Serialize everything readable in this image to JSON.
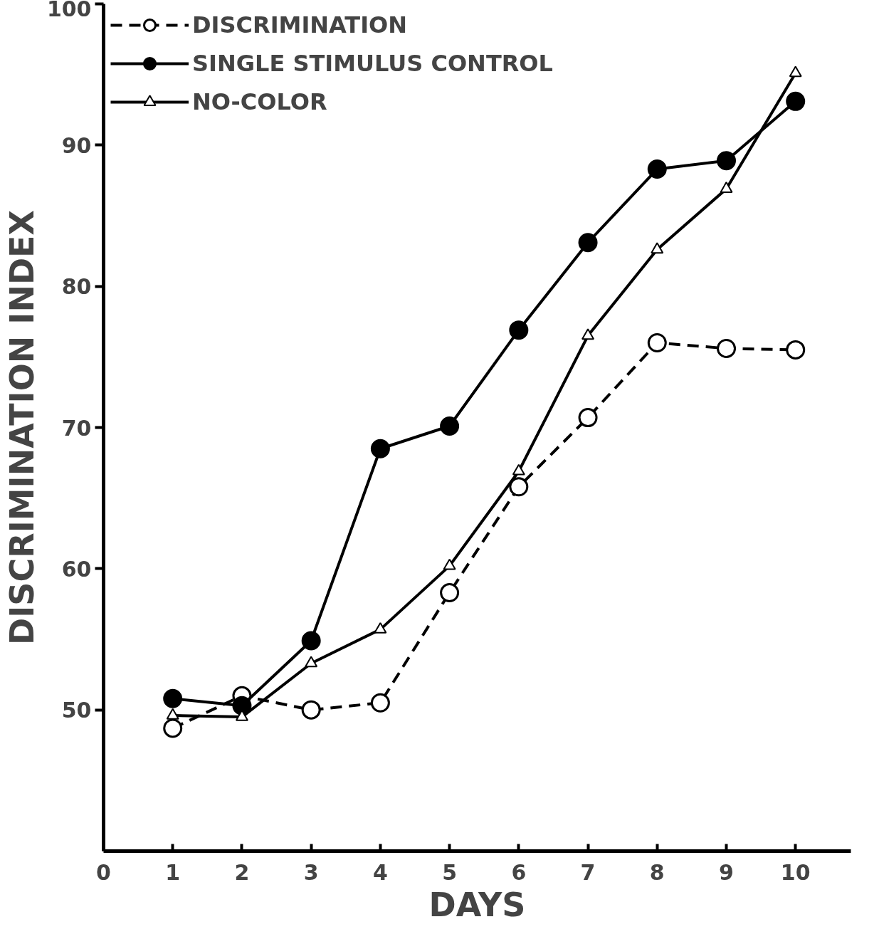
{
  "chart_data": {
    "type": "line",
    "xlabel": "DAYS",
    "ylabel": "DISCRIMINATION INDEX",
    "x": [
      1,
      2,
      3,
      4,
      5,
      6,
      7,
      8,
      9,
      10
    ],
    "xlim": [
      0,
      10.8
    ],
    "xticks": [
      0,
      1,
      2,
      3,
      4,
      5,
      6,
      7,
      8,
      9,
      10
    ],
    "ylim": [
      40,
      100
    ],
    "yticks": [
      50,
      60,
      70,
      80,
      90,
      100
    ],
    "grid": false,
    "legend": "top left",
    "series": [
      {
        "name": "DISCRIMINATION",
        "color": "#000000",
        "marker": "circle",
        "line_style": "dashed",
        "values": [
          48.7,
          51.0,
          50.0,
          50.5,
          58.3,
          65.8,
          70.7,
          76.0,
          75.6,
          75.5
        ]
      },
      {
        "name": "SINGLE STIMULUS CONTROL",
        "color": "#000000",
        "marker": "circle",
        "line_style": "solid",
        "values": [
          50.8,
          50.3,
          54.9,
          68.5,
          70.1,
          76.9,
          83.1,
          88.3,
          88.9,
          93.1
        ]
      },
      {
        "name": "NO-COLOR",
        "color": "#000000",
        "marker": "triangle",
        "line_style": "solid",
        "values": [
          49.6,
          49.5,
          53.3,
          55.7,
          60.2,
          66.9,
          76.5,
          82.6,
          86.9,
          95.1
        ]
      }
    ]
  }
}
